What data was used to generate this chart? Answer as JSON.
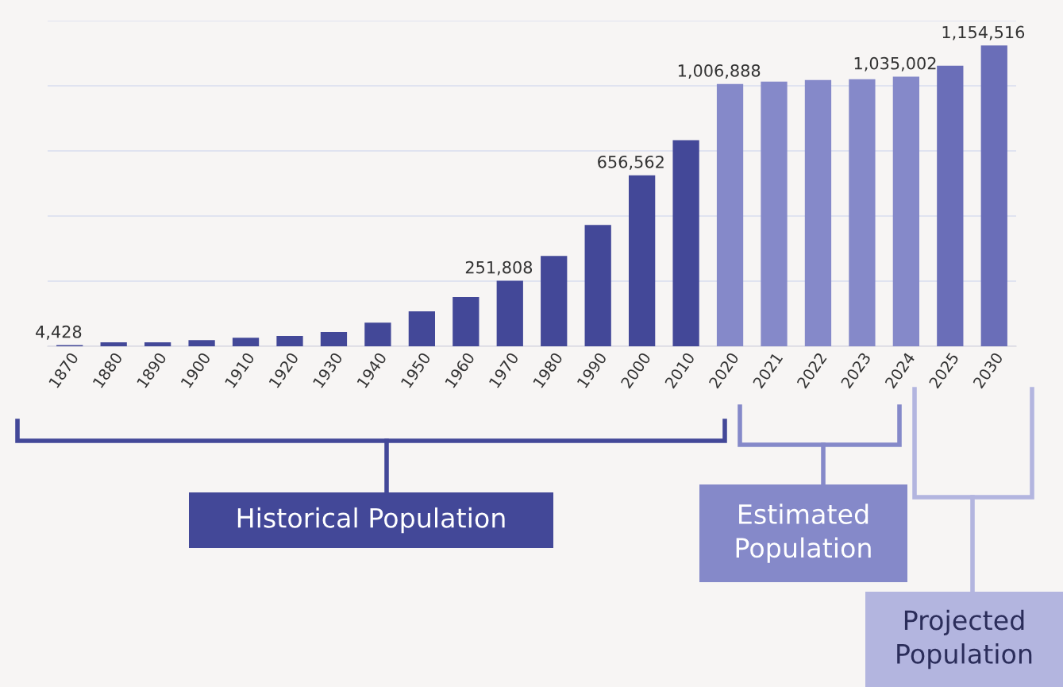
{
  "chart_data": {
    "type": "bar",
    "categories": [
      "1870",
      "1880",
      "1890",
      "1900",
      "1910",
      "1920",
      "1930",
      "1940",
      "1950",
      "1960",
      "1970",
      "1980",
      "1990",
      "2000",
      "2010",
      "2020",
      "2021",
      "2022",
      "2023",
      "2024",
      "2025",
      "2030"
    ],
    "values": [
      4428,
      15000,
      15000,
      24000,
      33000,
      40000,
      55000,
      91000,
      134000,
      189000,
      251808,
      347000,
      466000,
      656562,
      791000,
      1006888,
      1016000,
      1022000,
      1025000,
      1035002,
      1077000,
      1154516
    ],
    "value_labels": [
      "4,428",
      null,
      null,
      null,
      null,
      null,
      null,
      null,
      null,
      null,
      "251,808",
      null,
      null,
      "656,562",
      null,
      "1,006,888",
      null,
      null,
      null,
      "1,035,002",
      null,
      "1,154,516"
    ],
    "colors": [
      "#434898",
      "#434898",
      "#434898",
      "#434898",
      "#434898",
      "#434898",
      "#434898",
      "#434898",
      "#434898",
      "#434898",
      "#434898",
      "#434898",
      "#434898",
      "#434898",
      "#434898",
      "#8589c9",
      "#8589c9",
      "#8589c9",
      "#8589c9",
      "#8589c9",
      "#6a6eb8",
      "#6a6eb8"
    ],
    "ylim": [
      0,
      1250000
    ],
    "yticks": [
      {
        "value": 0,
        "label": null
      },
      {
        "value": 250000,
        "label": null
      },
      {
        "value": 500000,
        "label": null
      },
      {
        "value": 750000,
        "label": null
      },
      {
        "value": 1000000,
        "label": null
      },
      {
        "value": 1250000,
        "label": null
      }
    ],
    "tick_labels": "x",
    "grid": "y",
    "legend": false,
    "annotations": [
      "Historical Population",
      "Estimated Population",
      "Projected Population"
    ]
  }
}
